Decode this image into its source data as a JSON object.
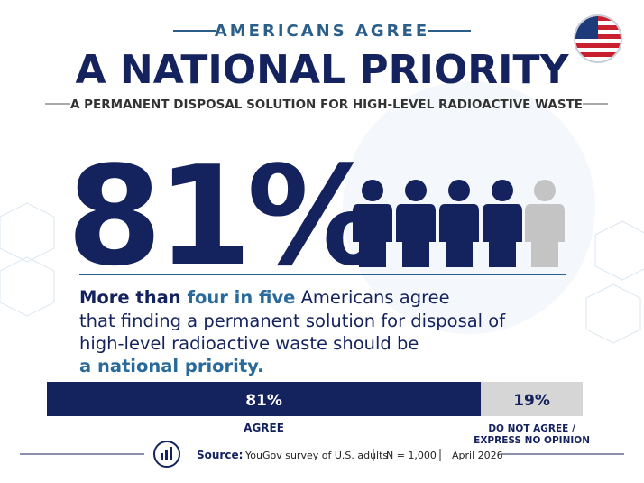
{
  "header": {
    "kicker": "AMERICANS AGREE",
    "title": "A NATIONAL PRIORITY",
    "subtitle": "A PERMANENT DISPOSAL SOLUTION FOR HIGH-LEVEL RADIOACTIVE WASTE"
  },
  "big_stat": "81%",
  "statement": {
    "lines": [
      [
        "More than ",
        "four in five",
        " Americans agree"
      ],
      [
        "that finding a permanent solution for disposal of"
      ],
      [
        "high-level radioactive waste should be"
      ],
      [
        "a national priority."
      ]
    ]
  },
  "bar": {
    "values": [
      81,
      19
    ],
    "value_labels": [
      "81%",
      "19%"
    ],
    "colors": [
      "#14225e",
      "#d6d6d6"
    ],
    "label_colors": [
      "#ffffff",
      "#14225e"
    ],
    "categories": [
      [
        "AGREE"
      ],
      [
        "DO NOT AGREE /",
        "EXPRESS NO OPINION"
      ]
    ]
  },
  "source": {
    "label": "Source:",
    "text": "YouGov survey of U.S. adults",
    "sample": "N = 1,000",
    "date": "April 2026"
  }
}
